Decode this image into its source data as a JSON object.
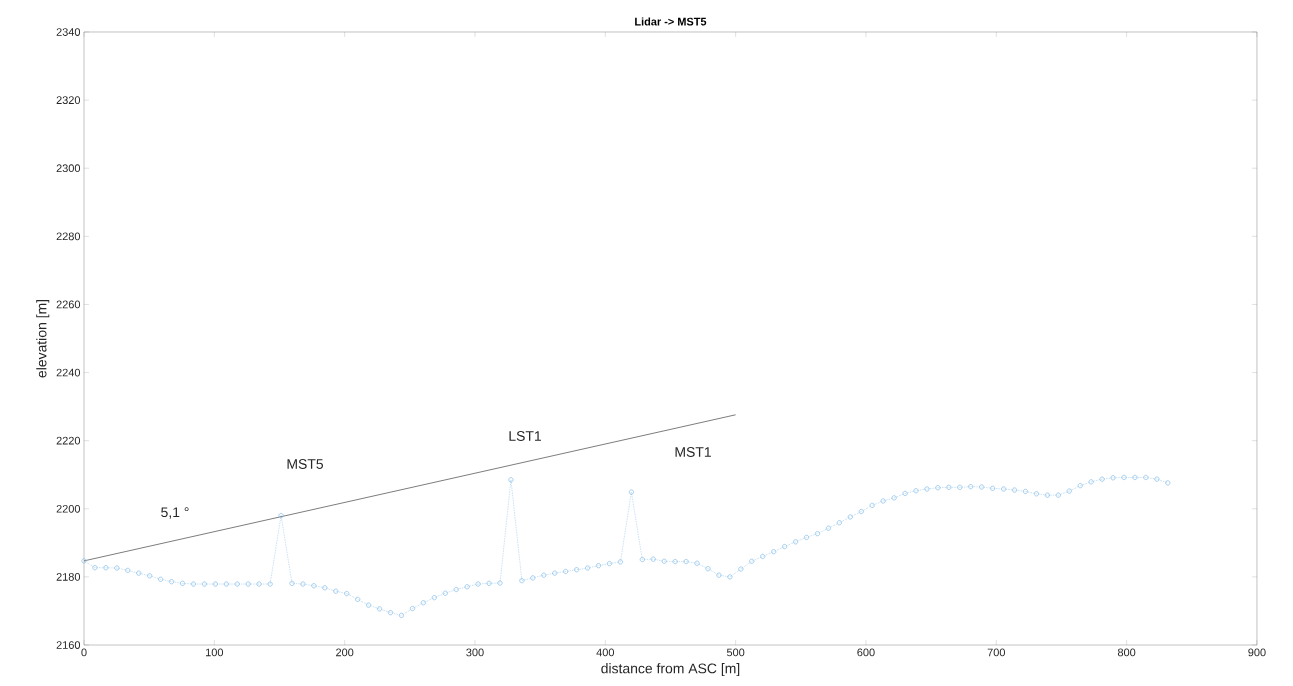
{
  "chart_data": {
    "type": "line",
    "title": "Lidar -> MST5",
    "xlabel": "distance from ASC [m]",
    "ylabel": "elevation [m]",
    "xlim": [
      0,
      900
    ],
    "xticks": [
      0,
      100,
      200,
      300,
      400,
      500,
      600,
      700,
      800,
      900
    ],
    "ylim": [
      2160,
      2340
    ],
    "yticks": [
      2160,
      2180,
      2200,
      2220,
      2240,
      2260,
      2280,
      2300,
      2320,
      2340
    ],
    "grid": false,
    "series": [
      {
        "color": "#8ec1ea",
        "marker": "circle",
        "line_style": "dotted",
        "x": [
          0,
          8.4,
          16.8,
          25.2,
          33.6,
          42,
          50.4,
          58.8,
          67.2,
          75.6,
          84,
          92.4,
          100.8,
          109.2,
          117.6,
          126,
          134.4,
          142.8,
          151.2,
          159.6,
          168,
          176.4,
          184.8,
          193.2,
          201.6,
          210,
          218.4,
          226.8,
          235.2,
          243.6,
          252,
          260.4,
          268.8,
          277.2,
          285.6,
          294,
          302.4,
          310.8,
          319.2,
          327.6,
          336,
          344.4,
          352.8,
          361.2,
          369.6,
          378,
          386.4,
          394.8,
          403.2,
          411.6,
          420,
          428.4,
          436.8,
          445.2,
          453.6,
          462,
          470.4,
          478.8,
          487.2,
          495.6,
          504,
          512.4,
          520.8,
          529.2,
          537.6,
          546,
          554.4,
          562.8,
          571.2,
          579.6,
          588,
          596.4,
          604.8,
          613.2,
          621.6,
          630,
          638.4,
          646.8,
          655.2,
          663.6,
          672,
          680.4,
          688.8,
          697.2,
          705.6,
          714,
          722.4,
          730.8,
          739.2,
          747.6,
          756,
          764.4,
          772.8,
          781.2,
          789.6,
          798,
          806.4,
          814.8,
          823.2,
          831.6
        ],
        "values": [
          2184.7,
          2182.7,
          2182.7,
          2182.6,
          2181.9,
          2181.1,
          2180.3,
          2179.3,
          2178.6,
          2178.1,
          2177.9,
          2177.9,
          2177.9,
          2177.9,
          2177.9,
          2177.9,
          2177.9,
          2177.9,
          2198.0,
          2178.1,
          2177.9,
          2177.4,
          2176.8,
          2175.8,
          2175.1,
          2173.4,
          2171.7,
          2170.6,
          2169.5,
          2168.7,
          2170.7,
          2172.4,
          2173.9,
          2175.2,
          2176.3,
          2177.1,
          2177.9,
          2178.1,
          2178.2,
          2208.5,
          2178.9,
          2179.7,
          2180.5,
          2181.1,
          2181.6,
          2182.1,
          2182.6,
          2183.3,
          2183.9,
          2184.4,
          2204.9,
          2185.1,
          2185.2,
          2184.6,
          2184.5,
          2184.5,
          2184.0,
          2182.4,
          2180.5,
          2180.0,
          2182.3,
          2184.6,
          2186.0,
          2187.4,
          2188.9,
          2190.3,
          2191.6,
          2192.7,
          2194.3,
          2195.9,
          2197.6,
          2199.2,
          2201.0,
          2202.3,
          2203.2,
          2204.5,
          2205.3,
          2205.8,
          2206.2,
          2206.3,
          2206.3,
          2206.5,
          2206.4,
          2206.0,
          2205.8,
          2205.5,
          2205.1,
          2204.4,
          2204.0,
          2204.0,
          2205.2,
          2206.8,
          2207.9,
          2208.7,
          2209.1,
          2209.2,
          2209.2,
          2209.2,
          2208.7,
          2207.6
        ]
      },
      {
        "color": "#444444",
        "marker": "none",
        "line_style": "solid",
        "x": [
          0,
          500
        ],
        "values": [
          2184.7,
          2227.6
        ]
      }
    ],
    "annotations": [
      "5,1 °",
      "MST5",
      "LST1",
      "MST1"
    ]
  }
}
